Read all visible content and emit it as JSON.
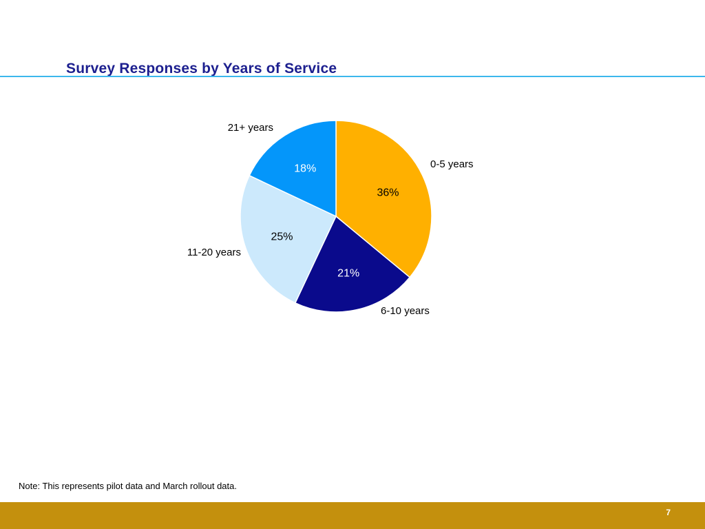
{
  "slide": {
    "title": "Survey Responses by Years of Service",
    "note": "Note: This represents pilot data and March rollout data.",
    "page_number": "7",
    "title_color": "#1c1f8f",
    "rule_color": "#3bb7ec",
    "footer_color": "#c4900d"
  },
  "chart_data": {
    "type": "pie",
    "title": "Survey Responses by Years of Service",
    "start_angle_deg": 0,
    "direction": "clockwise",
    "slices": [
      {
        "label": "0-5 years",
        "value": 36,
        "display": "36%",
        "color": "#ffb000",
        "text_color": "#000000"
      },
      {
        "label": "6-10 years",
        "value": 21,
        "display": "21%",
        "color": "#0a0a8c",
        "text_color": "#ffffff"
      },
      {
        "label": "11-20 years",
        "value": 25,
        "display": "25%",
        "color": "#cce9fc",
        "text_color": "#000000"
      },
      {
        "label": "21+ years",
        "value": 18,
        "display": "18%",
        "color": "#0496fa",
        "text_color": "#ffffff"
      }
    ]
  }
}
